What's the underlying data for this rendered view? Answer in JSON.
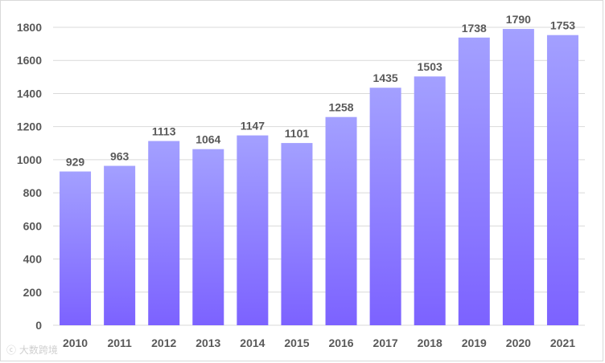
{
  "chart_data": {
    "type": "bar",
    "categories": [
      "2010",
      "2011",
      "2012",
      "2013",
      "2014",
      "2015",
      "2016",
      "2017",
      "2018",
      "2019",
      "2020",
      "2021"
    ],
    "values": [
      929,
      963,
      1113,
      1064,
      1147,
      1101,
      1258,
      1435,
      1503,
      1738,
      1790,
      1753
    ],
    "ylim": [
      0,
      1800
    ],
    "yticks": [
      0,
      200,
      400,
      600,
      800,
      1000,
      1200,
      1400,
      1600,
      1800
    ],
    "grid": true,
    "legend": "none",
    "data_labels": true,
    "colors": {
      "bar_top": "#a3a0ff",
      "bar_bottom": "#7c62ff",
      "grid": "#d9d9d9",
      "text": "#595959"
    }
  },
  "watermark": {
    "glyph": "ⓒ",
    "text": "大数跨境"
  }
}
